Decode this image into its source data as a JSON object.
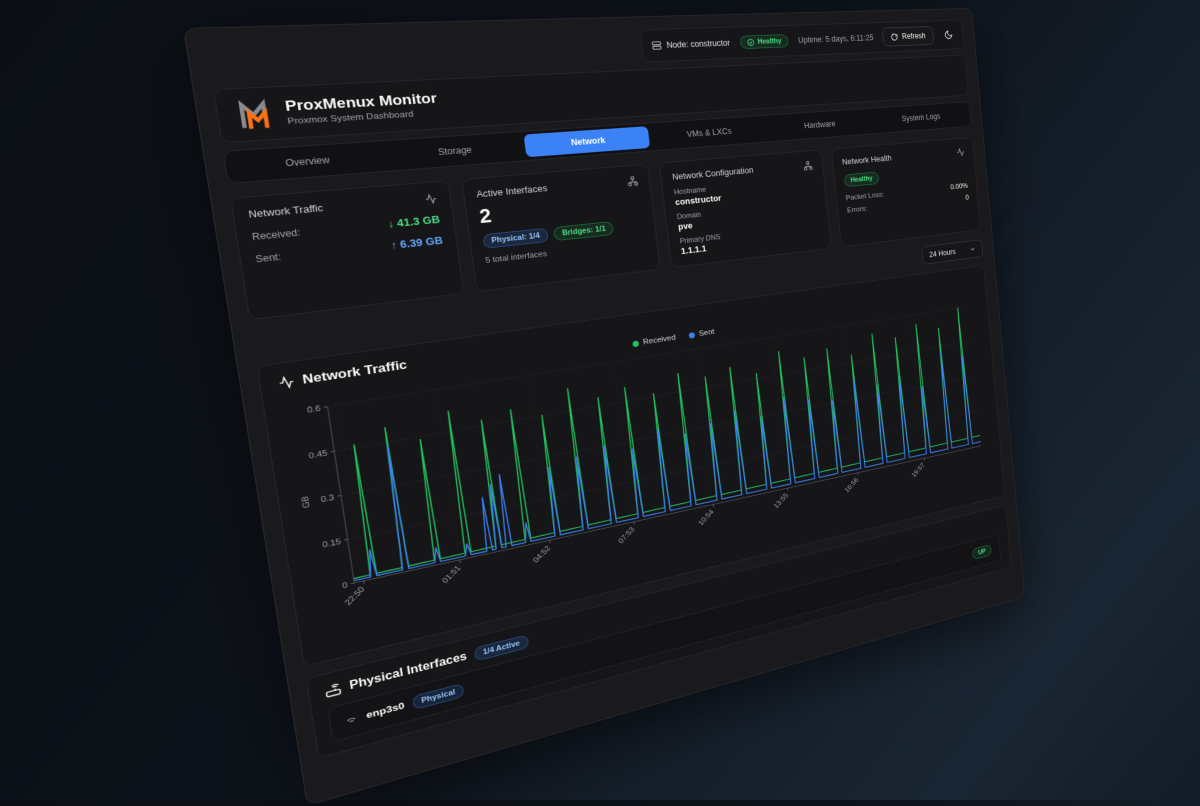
{
  "topbar": {
    "node_label": "Node: constructor",
    "health_label": "Healthy",
    "uptime": "Uptime: 5 days, 6:11:25",
    "refresh_label": "Refresh"
  },
  "header": {
    "title": "ProxMenux Monitor",
    "subtitle": "Proxmox System Dashboard"
  },
  "tabs": {
    "items": [
      "Overview",
      "Storage",
      "Network",
      "VMs & LXCs",
      "Hardware",
      "System Logs"
    ],
    "active_index": 2
  },
  "stats": {
    "traffic": {
      "title": "Network Traffic",
      "rows": [
        {
          "label": "Received:",
          "arrow": "↓",
          "value": "41.3 GB",
          "color": "#4ade80"
        },
        {
          "label": "Sent:",
          "arrow": "↑",
          "value": "6.39 GB",
          "color": "#60a5fa"
        }
      ]
    },
    "interfaces": {
      "title": "Active Interfaces",
      "count": "2",
      "badges": [
        {
          "text": "Physical: 1/4",
          "color": "blue"
        },
        {
          "text": "Bridges: 1/1",
          "color": "green"
        }
      ],
      "footnote": "5 total interfaces"
    },
    "config": {
      "title": "Network Configuration",
      "fields": [
        {
          "label": "Hostname",
          "value": "constructor"
        },
        {
          "label": "Domain",
          "value": "pve"
        },
        {
          "label": "Primary DNS",
          "value": "1.1.1.1"
        }
      ]
    },
    "health": {
      "title": "Network Health",
      "status": "Healthy",
      "rows": [
        {
          "label": "Packet Loss:",
          "value": "0.00%"
        },
        {
          "label": "Errors:",
          "value": "0"
        }
      ]
    }
  },
  "time_range": {
    "value": "24 Hours"
  },
  "chart_card": {
    "title": "Network Traffic"
  },
  "chart_data": {
    "type": "line",
    "title": "Network Traffic",
    "ylabel": "GB",
    "ylim": [
      0,
      0.6
    ],
    "y_ticks": [
      0,
      0.15,
      0.3,
      0.45,
      0.6
    ],
    "x_ticks": [
      [
        "22:50",
        0.012
      ],
      [
        "01:51",
        0.137
      ],
      [
        "04:52",
        0.262
      ],
      [
        "07:53",
        0.387
      ],
      [
        "10:54",
        0.512
      ],
      [
        "13:55",
        0.637
      ],
      [
        "16:56",
        0.762
      ],
      [
        "19:57",
        0.887
      ]
    ],
    "grid": "dashed",
    "legend_position": "top-center",
    "series": [
      {
        "name": "Received",
        "color": "#22c55e",
        "baseline": [
          0.015,
          0.045
        ],
        "spikes": [
          [
            0.025,
            0.46
          ],
          [
            0.066,
            0.5
          ],
          [
            0.108,
            0.44
          ],
          [
            0.149,
            0.52
          ],
          [
            0.191,
            0.47
          ],
          [
            0.232,
            0.49
          ],
          [
            0.274,
            0.45
          ],
          [
            0.315,
            0.53
          ],
          [
            0.357,
            0.48
          ],
          [
            0.398,
            0.5
          ],
          [
            0.44,
            0.46
          ],
          [
            0.481,
            0.52
          ],
          [
            0.523,
            0.49
          ],
          [
            0.564,
            0.51
          ],
          [
            0.606,
            0.47
          ],
          [
            0.647,
            0.54
          ],
          [
            0.689,
            0.5
          ],
          [
            0.73,
            0.52
          ],
          [
            0.772,
            0.48
          ],
          [
            0.813,
            0.55
          ],
          [
            0.855,
            0.52
          ],
          [
            0.896,
            0.56
          ],
          [
            0.938,
            0.53
          ],
          [
            0.979,
            0.6
          ]
        ]
      },
      {
        "name": "Sent",
        "color": "#3b82f6",
        "baseline": [
          0.008,
          0.018
        ],
        "spikes": [
          [
            0.025,
            0.1
          ],
          [
            0.066,
            0.44
          ],
          [
            0.108,
            0.06
          ],
          [
            0.149,
            0.05
          ],
          [
            0.178,
            0.2
          ],
          [
            0.191,
            0.24
          ],
          [
            0.205,
            0.27
          ],
          [
            0.232,
            0.08
          ],
          [
            0.274,
            0.26
          ],
          [
            0.315,
            0.28
          ],
          [
            0.357,
            0.3
          ],
          [
            0.398,
            0.27
          ],
          [
            0.44,
            0.33
          ],
          [
            0.481,
            0.29
          ],
          [
            0.523,
            0.31
          ],
          [
            0.564,
            0.34
          ],
          [
            0.606,
            0.3
          ],
          [
            0.647,
            0.36
          ],
          [
            0.689,
            0.33
          ],
          [
            0.73,
            0.31
          ],
          [
            0.772,
            0.38
          ],
          [
            0.813,
            0.34
          ],
          [
            0.855,
            0.36
          ],
          [
            0.896,
            0.3
          ],
          [
            0.938,
            0.43
          ],
          [
            0.979,
            0.4
          ]
        ]
      }
    ]
  },
  "physical": {
    "title": "Physical Interfaces",
    "active_badge": "1/4 Active",
    "interfaces": [
      {
        "name": "enp3s0",
        "type_badge": "Physical",
        "status": "UP"
      }
    ]
  }
}
